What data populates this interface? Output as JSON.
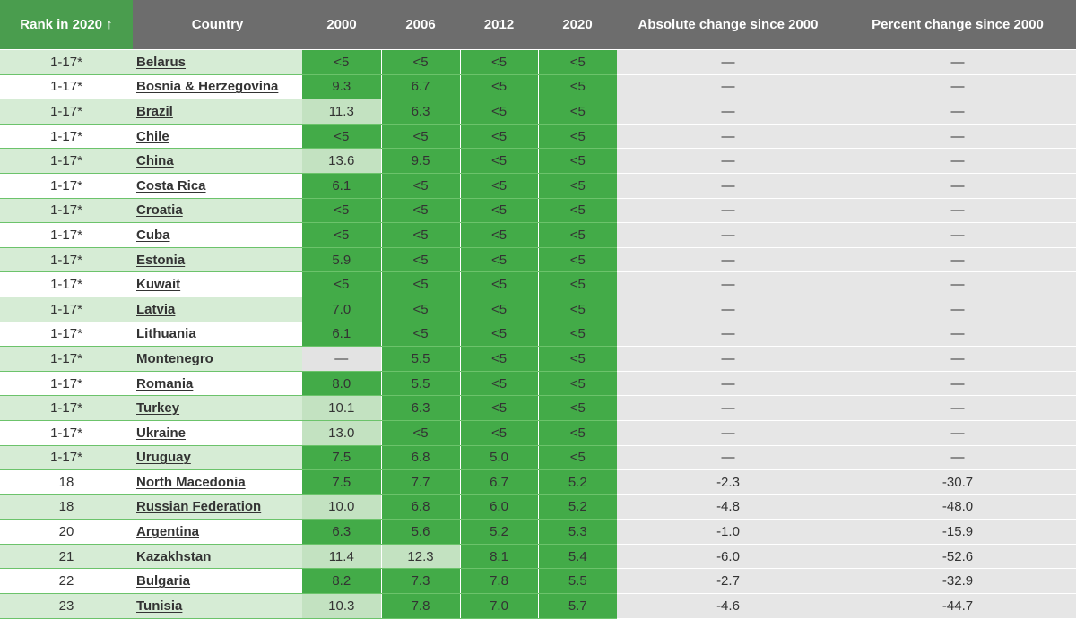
{
  "header": {
    "rank": "Rank in 2020 ↑",
    "country": "Country",
    "y2000": "2000",
    "y2006": "2006",
    "y2012": "2012",
    "y2020": "2020",
    "abs_change": "Absolute change since 2000",
    "pct_change": "Percent change since 2000"
  },
  "colors": {
    "header_gray": "#6d6d6d",
    "header_rank_green": "#4a9d4e",
    "cell_dark_green": "#43ab48",
    "cell_light_green": "#c3e2c1",
    "row_stripe": "#d6ecd5",
    "change_bg": "#e6e6e6"
  },
  "rows": [
    {
      "rank": "1-17*",
      "country": "Belarus",
      "v2000": "<5",
      "v2006": "<5",
      "v2012": "<5",
      "v2020": "<5",
      "abs": "—",
      "pct": "—",
      "s2000": "dark",
      "s2006": "dark"
    },
    {
      "rank": "1-17*",
      "country": "Bosnia & Herzegovina",
      "v2000": "9.3",
      "v2006": "6.7",
      "v2012": "<5",
      "v2020": "<5",
      "abs": "—",
      "pct": "—",
      "s2000": "dark",
      "s2006": "dark"
    },
    {
      "rank": "1-17*",
      "country": "Brazil",
      "v2000": "11.3",
      "v2006": "6.3",
      "v2012": "<5",
      "v2020": "<5",
      "abs": "—",
      "pct": "—",
      "s2000": "light",
      "s2006": "dark"
    },
    {
      "rank": "1-17*",
      "country": "Chile",
      "v2000": "<5",
      "v2006": "<5",
      "v2012": "<5",
      "v2020": "<5",
      "abs": "—",
      "pct": "—",
      "s2000": "dark",
      "s2006": "dark"
    },
    {
      "rank": "1-17*",
      "country": "China",
      "v2000": "13.6",
      "v2006": "9.5",
      "v2012": "<5",
      "v2020": "<5",
      "abs": "—",
      "pct": "—",
      "s2000": "light",
      "s2006": "dark"
    },
    {
      "rank": "1-17*",
      "country": "Costa Rica",
      "v2000": "6.1",
      "v2006": "<5",
      "v2012": "<5",
      "v2020": "<5",
      "abs": "—",
      "pct": "—",
      "s2000": "dark",
      "s2006": "dark"
    },
    {
      "rank": "1-17*",
      "country": "Croatia",
      "v2000": "<5",
      "v2006": "<5",
      "v2012": "<5",
      "v2020": "<5",
      "abs": "—",
      "pct": "—",
      "s2000": "dark",
      "s2006": "dark"
    },
    {
      "rank": "1-17*",
      "country": "Cuba",
      "v2000": "<5",
      "v2006": "<5",
      "v2012": "<5",
      "v2020": "<5",
      "abs": "—",
      "pct": "—",
      "s2000": "dark",
      "s2006": "dark"
    },
    {
      "rank": "1-17*",
      "country": "Estonia",
      "v2000": "5.9",
      "v2006": "<5",
      "v2012": "<5",
      "v2020": "<5",
      "abs": "—",
      "pct": "—",
      "s2000": "dark",
      "s2006": "dark"
    },
    {
      "rank": "1-17*",
      "country": "Kuwait",
      "v2000": "<5",
      "v2006": "<5",
      "v2012": "<5",
      "v2020": "<5",
      "abs": "—",
      "pct": "—",
      "s2000": "dark",
      "s2006": "dark"
    },
    {
      "rank": "1-17*",
      "country": "Latvia",
      "v2000": "7.0",
      "v2006": "<5",
      "v2012": "<5",
      "v2020": "<5",
      "abs": "—",
      "pct": "—",
      "s2000": "dark",
      "s2006": "dark"
    },
    {
      "rank": "1-17*",
      "country": "Lithuania",
      "v2000": "6.1",
      "v2006": "<5",
      "v2012": "<5",
      "v2020": "<5",
      "abs": "—",
      "pct": "—",
      "s2000": "dark",
      "s2006": "dark"
    },
    {
      "rank": "1-17*",
      "country": "Montenegro",
      "v2000": "—",
      "v2006": "5.5",
      "v2012": "<5",
      "v2020": "<5",
      "abs": "—",
      "pct": "—",
      "s2000": "gray",
      "s2006": "dark"
    },
    {
      "rank": "1-17*",
      "country": "Romania",
      "v2000": "8.0",
      "v2006": "5.5",
      "v2012": "<5",
      "v2020": "<5",
      "abs": "—",
      "pct": "—",
      "s2000": "dark",
      "s2006": "dark"
    },
    {
      "rank": "1-17*",
      "country": "Turkey",
      "v2000": "10.1",
      "v2006": "6.3",
      "v2012": "<5",
      "v2020": "<5",
      "abs": "—",
      "pct": "—",
      "s2000": "light",
      "s2006": "dark"
    },
    {
      "rank": "1-17*",
      "country": "Ukraine",
      "v2000": "13.0",
      "v2006": "<5",
      "v2012": "<5",
      "v2020": "<5",
      "abs": "—",
      "pct": "—",
      "s2000": "light",
      "s2006": "dark"
    },
    {
      "rank": "1-17*",
      "country": "Uruguay",
      "v2000": "7.5",
      "v2006": "6.8",
      "v2012": "5.0",
      "v2020": "<5",
      "abs": "—",
      "pct": "—",
      "s2000": "dark",
      "s2006": "dark"
    },
    {
      "rank": "18",
      "country": "North Macedonia",
      "v2000": "7.5",
      "v2006": "7.7",
      "v2012": "6.7",
      "v2020": "5.2",
      "abs": "-2.3",
      "pct": "-30.7",
      "s2000": "dark",
      "s2006": "dark"
    },
    {
      "rank": "18",
      "country": "Russian Federation",
      "v2000": "10.0",
      "v2006": "6.8",
      "v2012": "6.0",
      "v2020": "5.2",
      "abs": "-4.8",
      "pct": "-48.0",
      "s2000": "light",
      "s2006": "dark"
    },
    {
      "rank": "20",
      "country": "Argentina",
      "v2000": "6.3",
      "v2006": "5.6",
      "v2012": "5.2",
      "v2020": "5.3",
      "abs": "-1.0",
      "pct": "-15.9",
      "s2000": "dark",
      "s2006": "dark"
    },
    {
      "rank": "21",
      "country": "Kazakhstan",
      "v2000": "11.4",
      "v2006": "12.3",
      "v2012": "8.1",
      "v2020": "5.4",
      "abs": "-6.0",
      "pct": "-52.6",
      "s2000": "light",
      "s2006": "light"
    },
    {
      "rank": "22",
      "country": "Bulgaria",
      "v2000": "8.2",
      "v2006": "7.3",
      "v2012": "7.8",
      "v2020": "5.5",
      "abs": "-2.7",
      "pct": "-32.9",
      "s2000": "dark",
      "s2006": "dark"
    },
    {
      "rank": "23",
      "country": "Tunisia",
      "v2000": "10.3",
      "v2006": "7.8",
      "v2012": "7.0",
      "v2020": "5.7",
      "abs": "-4.6",
      "pct": "-44.7",
      "s2000": "light",
      "s2006": "dark"
    }
  ]
}
